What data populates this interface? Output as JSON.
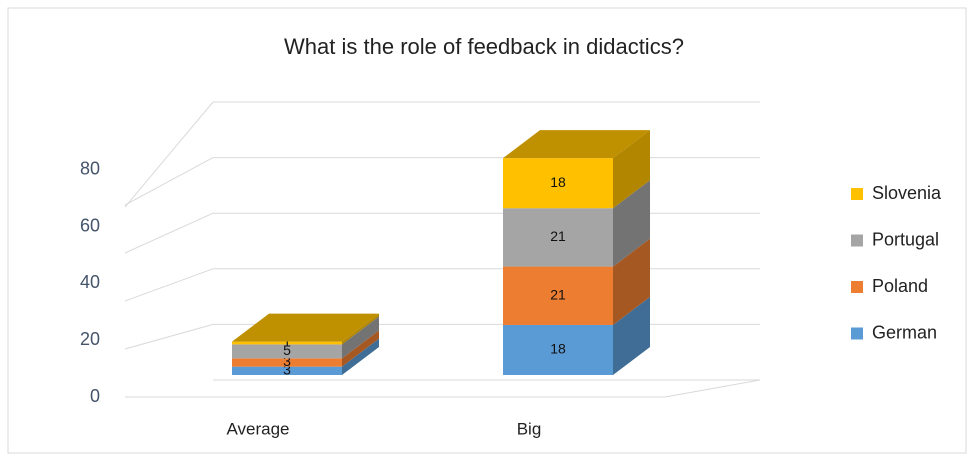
{
  "chart_data": {
    "type": "bar3d_stacked",
    "title": "What is the role of feedback in didactics?",
    "categories": [
      "Average",
      "Big"
    ],
    "series": [
      {
        "name": "German",
        "color": "#5b9bd5",
        "values": [
          3,
          18
        ]
      },
      {
        "name": "Poland",
        "color": "#ed7d31",
        "values": [
          3,
          21
        ]
      },
      {
        "name": "Portugal",
        "color": "#a5a5a5",
        "values": [
          5,
          21
        ]
      },
      {
        "name": "Slovenia",
        "color": "#ffc000",
        "values": [
          1,
          18
        ]
      }
    ],
    "ylim": [
      0,
      100
    ],
    "yticks": [
      0,
      20,
      40,
      60,
      80
    ],
    "grid": true,
    "legend": "right"
  }
}
